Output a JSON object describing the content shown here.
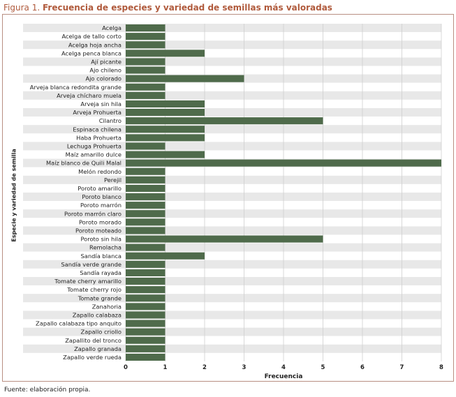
{
  "figure": {
    "prefix": "Figura 1.",
    "title": "Frecuencia de especies y variedad de semillas más valoradas",
    "source": "Fuente: elaboración propia."
  },
  "chart_data": {
    "type": "bar",
    "orientation": "horizontal",
    "xlabel": "Frecuencia",
    "ylabel": "Especie y variedad de semilla",
    "xlim": [
      0,
      8
    ],
    "xticks": [
      0,
      1,
      2,
      3,
      4,
      5,
      6,
      7,
      8
    ],
    "bar_color": "#4f6b4b",
    "stripe_colors": [
      "#e8e8e8",
      "#ffffff"
    ],
    "grid": true,
    "categories": [
      "Acelga",
      "Acelga de tallo corto",
      "Acelga hoja ancha",
      "Acelga penca blanca",
      "Ají picante",
      "Ajo chileno",
      "Ajo colorado",
      "Arveja blanca redondita grande",
      "Arveja chícharo muela",
      "Arveja sin hila",
      "Arveja Prohuerta",
      "Cilantro",
      "Espinaca chilena",
      "Haba Prohuerta",
      "Lechuga Prohuerta",
      "Maíz amarillo dulce",
      "Maíz blanco de Quili Malal",
      "Melón redondo",
      "Perejil",
      "Poroto amarillo",
      "Poroto blanco",
      "Poroto marrón",
      "Poroto marrón claro",
      "Poroto morado",
      "Poroto moteado",
      "Poroto sin hila",
      "Remolacha",
      "Sandía blanca",
      "Sandía verde grande",
      "Sandía rayada",
      "Tomate cherry amarillo",
      "Tomate cherry rojo",
      "Tomate grande",
      "Zanahoria",
      "Zapallo calabaza",
      "Zapallo calabaza tipo anquito",
      "Zapallo criollo",
      "Zapallito del tronco",
      "Zapallo granada",
      "Zapallo verde rueda"
    ],
    "values": [
      1,
      1,
      1,
      2,
      1,
      1,
      3,
      1,
      1,
      2,
      2,
      5,
      2,
      2,
      1,
      2,
      8,
      1,
      1,
      1,
      1,
      1,
      1,
      1,
      1,
      5,
      1,
      2,
      1,
      1,
      1,
      1,
      1,
      1,
      1,
      1,
      1,
      1,
      1,
      1
    ]
  }
}
